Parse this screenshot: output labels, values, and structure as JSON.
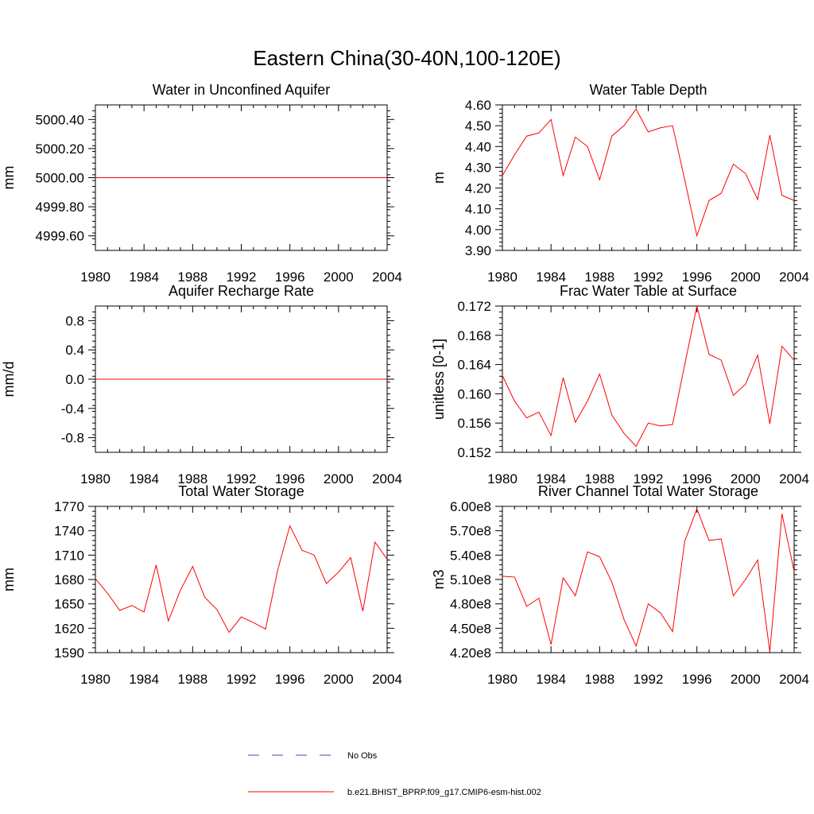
{
  "figure": {
    "title": "Eastern China(30-40N,100-120E)"
  },
  "legend": {
    "placement": "bottom-center",
    "entries": [
      {
        "label": "No Obs",
        "color": "#3a4fa8",
        "style": "dashed"
      },
      {
        "label": "b.e21.BHIST_BPRP.f09_g17.CMIP6-esm-hist.002",
        "color": "#ff0000",
        "style": "solid"
      }
    ]
  },
  "chart_data": [
    {
      "type": "line",
      "title": "Water in Unconfined Aquifer",
      "ylabel": "mm",
      "xlabel": "",
      "xlim": [
        1980,
        2004
      ],
      "ylim": [
        4999.5,
        5000.5
      ],
      "xticks": [
        1980,
        1984,
        1988,
        1992,
        1996,
        2000,
        2004
      ],
      "yticks": [
        4999.6,
        4999.8,
        5000.0,
        5000.2,
        5000.4
      ],
      "ytick_labels": [
        "4999.60",
        "4999.80",
        "5000.00",
        "5000.20",
        "5000.40"
      ],
      "yminor": 0.04,
      "x": [
        1980,
        2004
      ],
      "series": [
        {
          "name": "b.e21.BHIST_BPRP.f09_g17.CMIP6-esm-hist.002",
          "color": "#ff0000",
          "values": [
            5000.0,
            5000.0
          ]
        }
      ]
    },
    {
      "type": "line",
      "title": "Water Table Depth",
      "ylabel": "m",
      "xlabel": "",
      "xlim": [
        1980,
        2004
      ],
      "ylim": [
        3.9,
        4.6
      ],
      "xticks": [
        1980,
        1984,
        1988,
        1992,
        1996,
        2000,
        2004
      ],
      "yticks": [
        3.9,
        4.0,
        4.1,
        4.2,
        4.3,
        4.4,
        4.5,
        4.6
      ],
      "ytick_labels": [
        "3.90",
        "4.00",
        "4.10",
        "4.20",
        "4.30",
        "4.40",
        "4.50",
        "4.60"
      ],
      "yminor": 0.02,
      "x": [
        1980,
        1981,
        1982,
        1983,
        1984,
        1985,
        1986,
        1987,
        1988,
        1989,
        1990,
        1991,
        1992,
        1993,
        1994,
        1995,
        1996,
        1997,
        1998,
        1999,
        2000,
        2001,
        2002,
        2003,
        2004
      ],
      "series": [
        {
          "name": "b.e21.BHIST_BPRP.f09_g17.CMIP6-esm-hist.002",
          "color": "#ff0000",
          "values": [
            4.26,
            4.36,
            4.45,
            4.465,
            4.53,
            4.26,
            4.445,
            4.4,
            4.24,
            4.45,
            4.5,
            4.58,
            4.47,
            4.49,
            4.5,
            4.24,
            3.97,
            4.14,
            4.175,
            4.315,
            4.27,
            4.145,
            4.455,
            4.165,
            4.14
          ]
        }
      ]
    },
    {
      "type": "line",
      "title": "Aquifer Recharge Rate",
      "ylabel": "mm/d",
      "xlabel": "",
      "xlim": [
        1980,
        2004
      ],
      "ylim": [
        -1.0,
        1.0
      ],
      "xticks": [
        1980,
        1984,
        1988,
        1992,
        1996,
        2000,
        2004
      ],
      "yticks": [
        -0.8,
        -0.4,
        0.0,
        0.4,
        0.8
      ],
      "ytick_labels": [
        "-0.8",
        "-0.4",
        "0.0",
        "0.4",
        "0.8"
      ],
      "yminor": 0.08,
      "x": [
        1980,
        2004
      ],
      "series": [
        {
          "name": "b.e21.BHIST_BPRP.f09_g17.CMIP6-esm-hist.002",
          "color": "#ff0000",
          "values": [
            0.0,
            0.0
          ]
        }
      ]
    },
    {
      "type": "line",
      "title": "Frac Water Table at Surface",
      "ylabel": "unitless [0-1]",
      "xlabel": "",
      "xlim": [
        1980,
        2004
      ],
      "ylim": [
        0.152,
        0.172
      ],
      "xticks": [
        1980,
        1984,
        1988,
        1992,
        1996,
        2000,
        2004
      ],
      "yticks": [
        0.152,
        0.156,
        0.16,
        0.164,
        0.168,
        0.172
      ],
      "ytick_labels": [
        "0.152",
        "0.156",
        "0.160",
        "0.164",
        "0.168",
        "0.172"
      ],
      "yminor": 0.0008,
      "x": [
        1980,
        1981,
        1982,
        1983,
        1984,
        1985,
        1986,
        1987,
        1988,
        1989,
        1990,
        1991,
        1992,
        1993,
        1994,
        1995,
        1996,
        1997,
        1998,
        1999,
        2000,
        2001,
        2002,
        2003,
        2004
      ],
      "series": [
        {
          "name": "b.e21.BHIST_BPRP.f09_g17.CMIP6-esm-hist.002",
          "color": "#ff0000",
          "values": [
            0.1625,
            0.159,
            0.1567,
            0.1575,
            0.1543,
            0.1622,
            0.1561,
            0.159,
            0.1627,
            0.1571,
            0.1546,
            0.1528,
            0.156,
            0.1556,
            0.1558,
            0.164,
            0.172,
            0.1654,
            0.1646,
            0.1598,
            0.1613,
            0.1653,
            0.1559,
            0.1665,
            0.1646
          ]
        }
      ]
    },
    {
      "type": "line",
      "title": "Total Water Storage",
      "ylabel": "mm",
      "xlabel": "",
      "xlim": [
        1980,
        2004
      ],
      "ylim": [
        1590,
        1770
      ],
      "xticks": [
        1980,
        1984,
        1988,
        1992,
        1996,
        2000,
        2004
      ],
      "yticks": [
        1590,
        1620,
        1650,
        1680,
        1710,
        1740,
        1770
      ],
      "ytick_labels": [
        "1590",
        "1620",
        "1650",
        "1680",
        "1710",
        "1740",
        "1770"
      ],
      "yminor": 6,
      "x": [
        1980,
        1981,
        1982,
        1983,
        1984,
        1985,
        1986,
        1987,
        1988,
        1989,
        1990,
        1991,
        1992,
        1993,
        1994,
        1995,
        1996,
        1997,
        1998,
        1999,
        2000,
        2001,
        2002,
        2003,
        2004
      ],
      "series": [
        {
          "name": "b.e21.BHIST_BPRP.f09_g17.CMIP6-esm-hist.002",
          "color": "#ff0000",
          "values": [
            1681,
            1663,
            1642,
            1648,
            1640,
            1698,
            1629,
            1667,
            1696,
            1658,
            1643,
            1615,
            1634,
            1627,
            1619,
            1692,
            1746,
            1716,
            1710,
            1675,
            1689,
            1707,
            1641,
            1726,
            1705
          ]
        }
      ]
    },
    {
      "type": "line",
      "title": "River Channel Total Water Storage",
      "ylabel": "m3",
      "xlabel": "",
      "xlim": [
        1980,
        2004
      ],
      "ylim": [
        420000000.0,
        600000000.0
      ],
      "xticks": [
        1980,
        1984,
        1988,
        1992,
        1996,
        2000,
        2004
      ],
      "yticks": [
        420000000.0,
        450000000.0,
        480000000.0,
        510000000.0,
        540000000.0,
        570000000.0,
        600000000.0
      ],
      "ytick_labels": [
        "4.20e8",
        "4.50e8",
        "4.80e8",
        "5.10e8",
        "5.40e8",
        "5.70e8",
        "6.00e8"
      ],
      "yminor": 6000000.0,
      "x": [
        1980,
        1981,
        1982,
        1983,
        1984,
        1985,
        1986,
        1987,
        1988,
        1989,
        1990,
        1991,
        1992,
        1993,
        1994,
        1995,
        1996,
        1997,
        1998,
        1999,
        2000,
        2001,
        2002,
        2003,
        2004
      ],
      "series": [
        {
          "name": "b.e21.BHIST_BPRP.f09_g17.CMIP6-esm-hist.002",
          "color": "#ff0000",
          "values": [
            514000000.0,
            513000000.0,
            477000000.0,
            487000000.0,
            430000000.0,
            512000000.0,
            490000000.0,
            544000000.0,
            538000000.0,
            507000000.0,
            461000000.0,
            428000000.0,
            480000000.0,
            469000000.0,
            446000000.0,
            557000000.0,
            597000000.0,
            558000000.0,
            560000000.0,
            490000000.0,
            510000000.0,
            534000000.0,
            421000000.0,
            591000000.0,
            520000000.0
          ]
        }
      ]
    }
  ]
}
